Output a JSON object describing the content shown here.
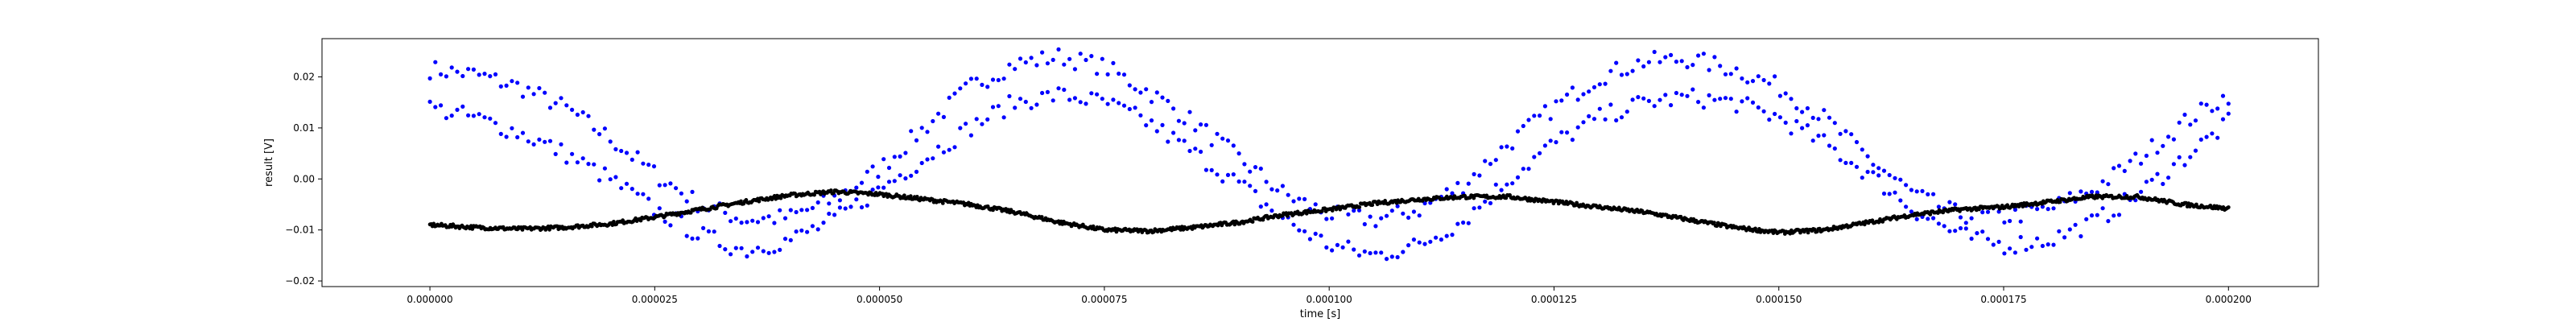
{
  "chart_data": {
    "type": "scatter",
    "title": "",
    "xlabel": "time [s]",
    "ylabel": "result [V]",
    "xlim": [
      -1.2e-05,
      0.00021
    ],
    "ylim": [
      -0.0211,
      0.0275
    ],
    "grid": false,
    "x_ticks": [
      0.0,
      2.5e-05,
      5e-05,
      7.5e-05,
      0.0001,
      0.000125,
      0.00015,
      0.000175,
      0.0002
    ],
    "x_tick_labels": [
      "0.000000",
      "0.000025",
      "0.000050",
      "0.000075",
      "0.000100",
      "0.000125",
      "0.000150",
      "0.000175",
      "0.000200"
    ],
    "y_ticks": [
      -0.02,
      -0.01,
      0.0,
      0.01,
      0.02
    ],
    "y_tick_labels": [
      "−0.02",
      "−0.01",
      "0.00",
      "0.01",
      "0.02"
    ],
    "series": [
      {
        "color": "#0000ff",
        "marker": "dot",
        "points_upper_band": [
          [
            0.0,
            0.0215
          ],
          [
            5e-06,
            0.0205
          ],
          [
            1e-05,
            0.018
          ],
          [
            1.5e-05,
            0.014
          ],
          [
            2e-05,
            0.008
          ],
          [
            2.5e-05,
            0.001
          ],
          [
            3e-05,
            -0.005
          ],
          [
            3.5e-05,
            -0.008
          ],
          [
            4e-05,
            -0.0075
          ],
          [
            4.5e-05,
            -0.004
          ],
          [
            5e-05,
            0.002
          ],
          [
            5.5e-05,
            0.01
          ],
          [
            6e-05,
            0.018
          ],
          [
            6.5e-05,
            0.0225
          ],
          [
            7e-05,
            0.024
          ],
          [
            7.5e-05,
            0.022
          ],
          [
            8e-05,
            0.017
          ],
          [
            8.5e-05,
            0.011
          ],
          [
            9e-05,
            0.004
          ],
          [
            9.5e-05,
            -0.003
          ],
          [
            0.0001,
            -0.007
          ],
          [
            0.000105,
            -0.008
          ],
          [
            0.00011,
            -0.006
          ],
          [
            0.000115,
            -0.001
          ],
          [
            0.00012,
            0.007
          ],
          [
            0.000125,
            0.014
          ],
          [
            0.00013,
            0.02
          ],
          [
            0.000135,
            0.023
          ],
          [
            0.00014,
            0.0235
          ],
          [
            0.000145,
            0.0215
          ],
          [
            0.00015,
            0.018
          ],
          [
            0.000155,
            0.012
          ],
          [
            0.00016,
            0.004
          ],
          [
            0.000165,
            -0.003
          ],
          [
            0.00017,
            -0.007
          ],
          [
            0.000175,
            -0.0075
          ],
          [
            0.00018,
            -0.006
          ],
          [
            0.000185,
            -0.002
          ],
          [
            0.00019,
            0.004
          ],
          [
            0.000195,
            0.011
          ],
          [
            0.0002,
            0.0165
          ]
        ],
        "points_lower_band": [
          [
            0.0,
            0.014
          ],
          [
            5e-06,
            0.012
          ],
          [
            1e-05,
            0.009
          ],
          [
            1.5e-05,
            0.005
          ],
          [
            2e-05,
            0.0
          ],
          [
            2.5e-05,
            -0.006
          ],
          [
            3e-05,
            -0.011
          ],
          [
            3.5e-05,
            -0.014
          ],
          [
            4e-05,
            -0.012
          ],
          [
            4.5e-05,
            -0.008
          ],
          [
            5e-05,
            -0.002
          ],
          [
            5.5e-05,
            0.004
          ],
          [
            6e-05,
            0.01
          ],
          [
            6.5e-05,
            0.015
          ],
          [
            7e-05,
            0.0165
          ],
          [
            7.5e-05,
            0.015
          ],
          [
            8e-05,
            0.011
          ],
          [
            8.5e-05,
            0.005
          ],
          [
            9e-05,
            -0.001
          ],
          [
            9.5e-05,
            -0.008
          ],
          [
            0.0001,
            -0.013
          ],
          [
            0.000105,
            -0.015
          ],
          [
            0.00011,
            -0.013
          ],
          [
            0.000115,
            -0.008
          ],
          [
            0.00012,
            0.0
          ],
          [
            0.000125,
            0.007
          ],
          [
            0.00013,
            0.012
          ],
          [
            0.000135,
            0.015
          ],
          [
            0.00014,
            0.016
          ],
          [
            0.000145,
            0.015
          ],
          [
            0.00015,
            0.012
          ],
          [
            0.000155,
            0.007
          ],
          [
            0.00016,
            0.001
          ],
          [
            0.000165,
            -0.006
          ],
          [
            0.00017,
            -0.011
          ],
          [
            0.000175,
            -0.013
          ],
          [
            0.00018,
            -0.012
          ],
          [
            0.000185,
            -0.0085
          ],
          [
            0.00019,
            -0.003
          ],
          [
            0.000195,
            0.004
          ],
          [
            0.0002,
            0.011
          ]
        ]
      },
      {
        "color": "#000000",
        "marker": "dot",
        "points": [
          [
            0.0,
            -0.009
          ],
          [
            5e-06,
            -0.0095
          ],
          [
            1e-05,
            -0.0098
          ],
          [
            1.5e-05,
            -0.0095
          ],
          [
            2e-05,
            -0.0088
          ],
          [
            2.5e-05,
            -0.0075
          ],
          [
            3e-05,
            -0.006
          ],
          [
            3.5e-05,
            -0.0045
          ],
          [
            4e-05,
            -0.0032
          ],
          [
            4.5e-05,
            -0.0025
          ],
          [
            5e-05,
            -0.003
          ],
          [
            5.5e-05,
            -0.004
          ],
          [
            6e-05,
            -0.005
          ],
          [
            6.5e-05,
            -0.0065
          ],
          [
            7e-05,
            -0.0085
          ],
          [
            7.5e-05,
            -0.01
          ],
          [
            8e-05,
            -0.0102
          ],
          [
            8.5e-05,
            -0.0095
          ],
          [
            9e-05,
            -0.0085
          ],
          [
            9.5e-05,
            -0.007
          ],
          [
            0.0001,
            -0.006
          ],
          [
            0.000105,
            -0.0048
          ],
          [
            0.00011,
            -0.004
          ],
          [
            0.000115,
            -0.0035
          ],
          [
            0.00012,
            -0.0035
          ],
          [
            0.000125,
            -0.0045
          ],
          [
            0.00013,
            -0.0055
          ],
          [
            0.000135,
            -0.0065
          ],
          [
            0.00014,
            -0.008
          ],
          [
            0.000145,
            -0.0095
          ],
          [
            0.00015,
            -0.0105
          ],
          [
            0.000155,
            -0.01
          ],
          [
            0.00016,
            -0.0085
          ],
          [
            0.000165,
            -0.007
          ],
          [
            0.00017,
            -0.006
          ],
          [
            0.000175,
            -0.0055
          ],
          [
            0.00018,
            -0.0045
          ],
          [
            0.000185,
            -0.0035
          ],
          [
            0.00019,
            -0.0035
          ],
          [
            0.000195,
            -0.005
          ],
          [
            0.0002,
            -0.0058
          ]
        ]
      }
    ]
  }
}
